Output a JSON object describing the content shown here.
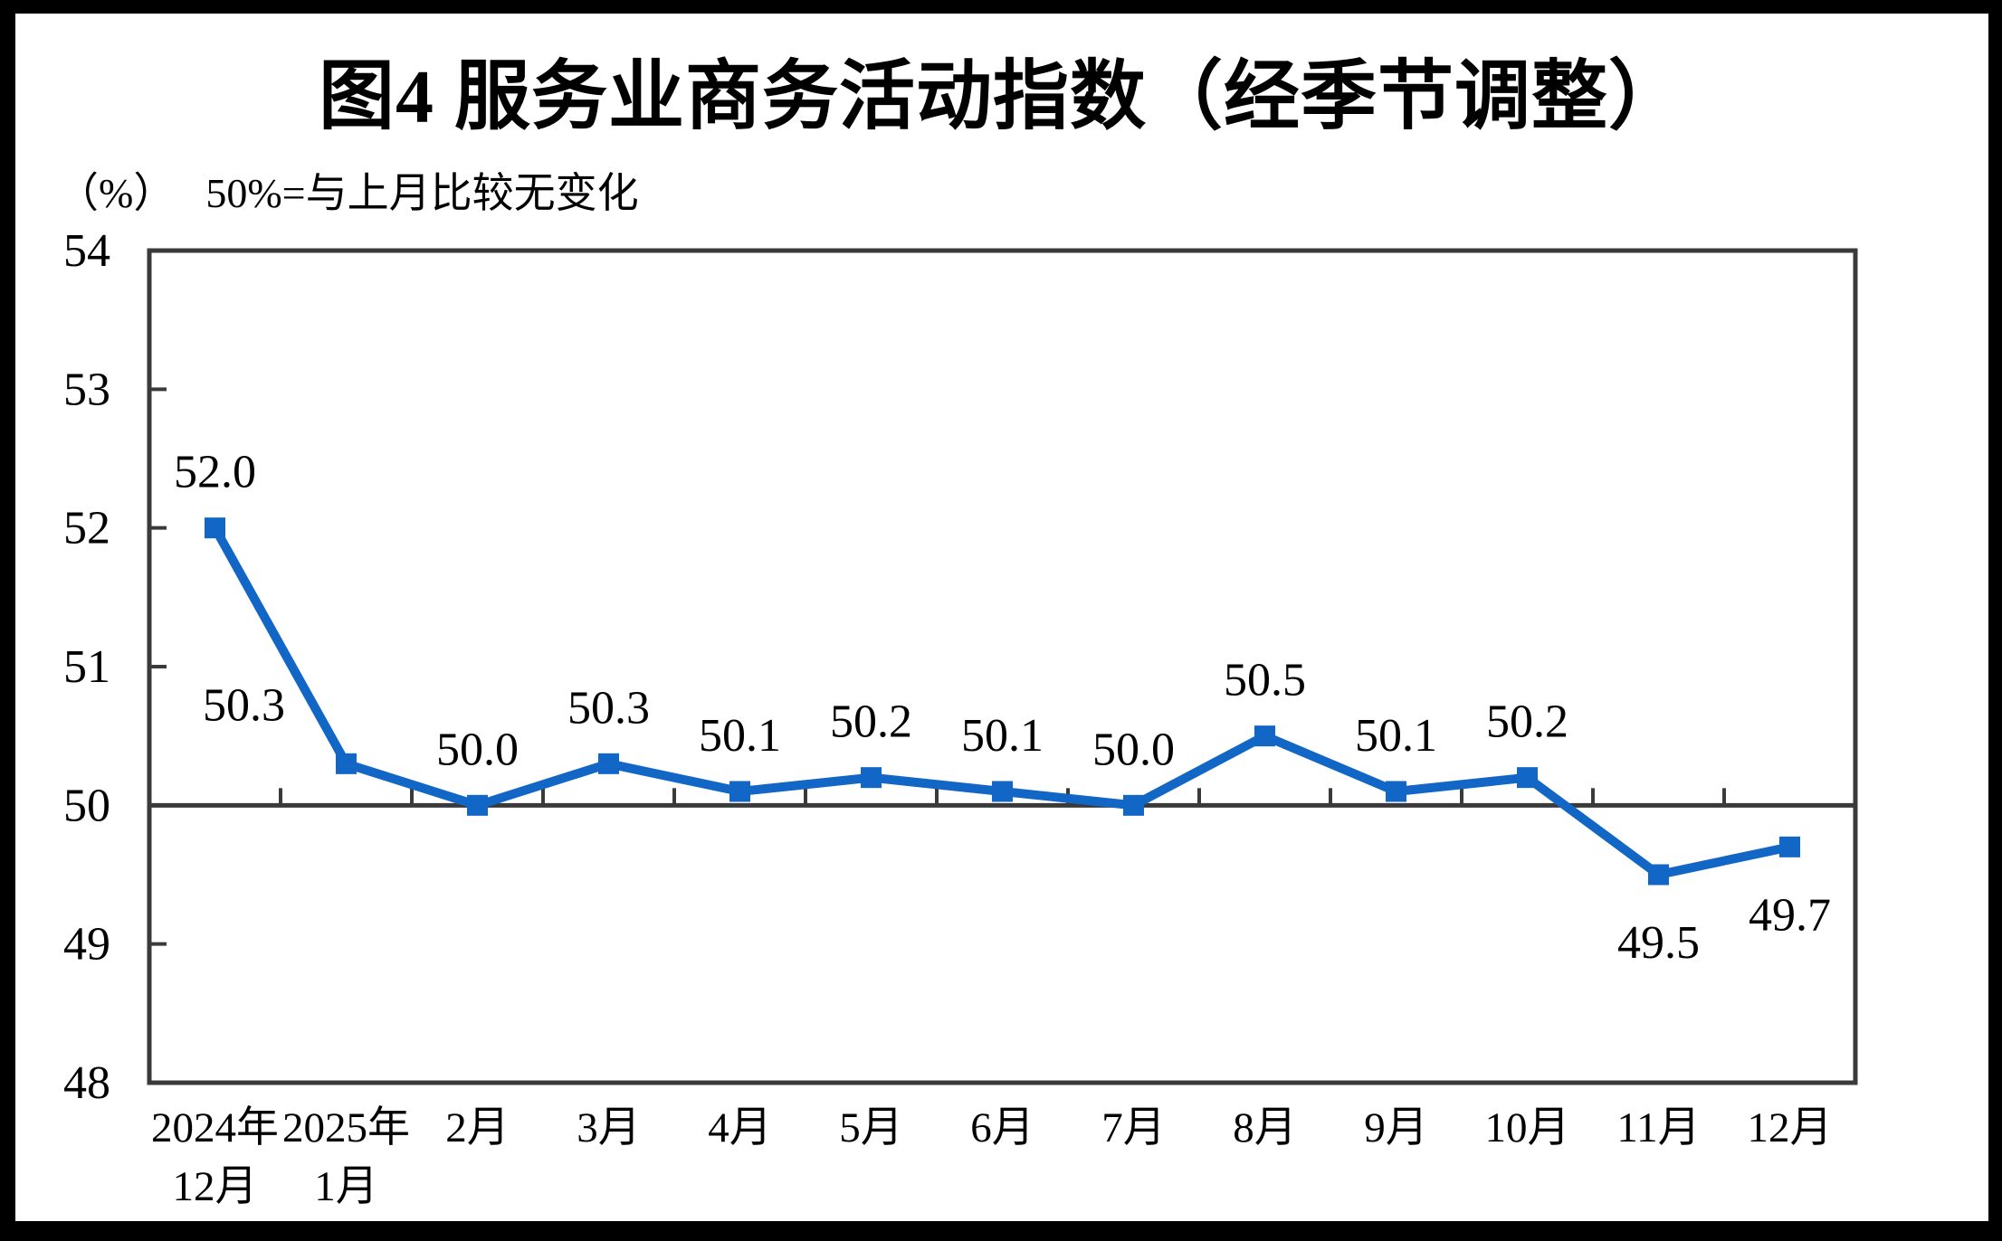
{
  "title": "图4 服务业商务活动指数（经季节调整）",
  "subtitle": {
    "unit": "（%）",
    "note": "50%=与上月比较无变化"
  },
  "chart_data": {
    "type": "line",
    "categories": [
      "2024年\n12月",
      "2025年\n1月",
      "2月",
      "3月",
      "4月",
      "5月",
      "6月",
      "7月",
      "8月",
      "9月",
      "10月",
      "11月",
      "12月"
    ],
    "values": [
      52.0,
      50.3,
      50.0,
      50.3,
      50.1,
      50.2,
      50.1,
      50.0,
      50.5,
      50.1,
      50.2,
      49.5,
      49.7
    ],
    "data_labels": [
      "52.0",
      "50.3",
      "50.0",
      "50.3",
      "50.1",
      "50.2",
      "50.1",
      "50.0",
      "50.5",
      "50.1",
      "50.2",
      "49.5",
      "49.7"
    ],
    "label_placements": [
      "above",
      "above-left",
      "above",
      "above",
      "above",
      "above",
      "above",
      "above",
      "above",
      "above",
      "above",
      "below",
      "below"
    ],
    "y_ticks": [
      54,
      53,
      52,
      51,
      50,
      49,
      48
    ],
    "ylim": [
      48,
      54
    ],
    "baseline": 50,
    "grid": false,
    "legend": false,
    "line_color": "#1266c5",
    "axis_color": "#3a3a3a",
    "text_color": "#000000",
    "frame_color": "#000000",
    "background_color": "#ffffff"
  }
}
